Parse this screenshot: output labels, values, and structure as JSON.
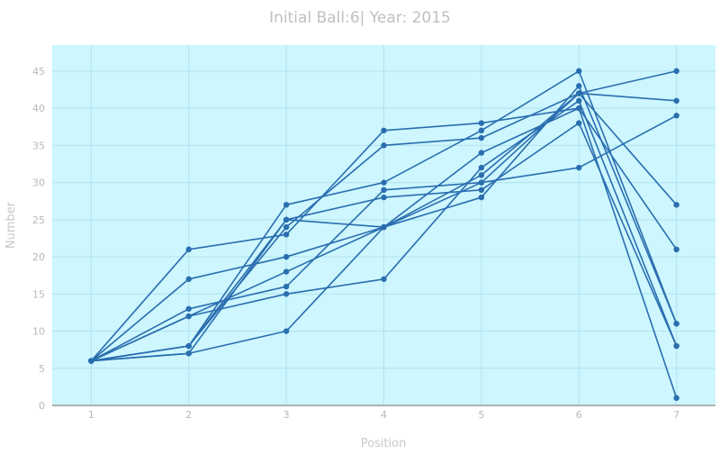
{
  "chart_data": {
    "type": "line",
    "title": "Initial Ball:6| Year: 2015",
    "xlabel": "Position",
    "ylabel": "Number",
    "x": [
      1,
      2,
      3,
      4,
      5,
      6,
      7
    ],
    "xlim": [
      0.6,
      7.4
    ],
    "ylim": [
      0,
      48.5
    ],
    "xticks": [
      1,
      2,
      3,
      4,
      5,
      6,
      7
    ],
    "yticks": [
      0,
      5,
      10,
      15,
      20,
      25,
      30,
      35,
      40,
      45
    ],
    "grid": true,
    "legend": "none",
    "colors": {
      "plot_background": "#cdf6ff",
      "line": "#2a6eaf",
      "grid": "#b0e4ee",
      "axis": "#9a9a9a"
    },
    "series": [
      {
        "values": [
          6,
          21,
          23,
          37,
          38,
          40,
          1
        ]
      },
      {
        "values": [
          6,
          17,
          20,
          24,
          31,
          42,
          41
        ]
      },
      {
        "values": [
          6,
          13,
          16,
          29,
          30,
          32,
          39
        ]
      },
      {
        "values": [
          6,
          12,
          18,
          24,
          28,
          43,
          11
        ]
      },
      {
        "values": [
          6,
          12,
          15,
          17,
          32,
          41,
          8
        ]
      },
      {
        "values": [
          6,
          8,
          27,
          30,
          37,
          45,
          11
        ]
      },
      {
        "values": [
          6,
          8,
          25,
          28,
          29,
          38,
          8
        ]
      },
      {
        "values": [
          6,
          8,
          24,
          35,
          36,
          42,
          27
        ]
      },
      {
        "values": [
          6,
          7,
          10,
          24,
          34,
          40,
          21
        ]
      },
      {
        "values": [
          6,
          7,
          25,
          24,
          30,
          42,
          45
        ]
      }
    ]
  }
}
